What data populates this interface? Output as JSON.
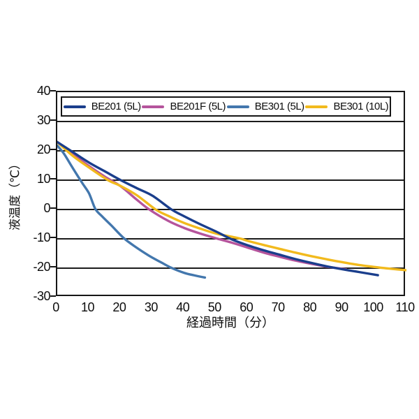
{
  "chart": {
    "y_title": "液温度（℃）",
    "x_title": "経過時間（分）",
    "frame_color": "#161616",
    "grid_color": "#1c1c1c"
  },
  "chart_data": {
    "type": "line",
    "title": "",
    "xlabel": "経過時間（分）",
    "ylabel": "液温度（℃）",
    "xlim": [
      0,
      110
    ],
    "ylim": [
      -30,
      40
    ],
    "x_ticks": [
      0,
      10,
      20,
      30,
      40,
      50,
      60,
      70,
      80,
      90,
      100,
      110
    ],
    "y_ticks": [
      40,
      30,
      20,
      10,
      0,
      -10,
      -20,
      -30
    ],
    "grid": "horizontal",
    "legend_position": "top-inside",
    "series": [
      {
        "name": "BE201F (5L)",
        "color": "#b5549c",
        "points": [
          [
            0,
            23
          ],
          [
            5,
            18.8
          ],
          [
            10,
            14.8
          ],
          [
            15,
            11.2
          ],
          [
            20,
            7.9
          ],
          [
            25,
            3.4
          ],
          [
            29,
            0
          ],
          [
            35,
            -3.9
          ],
          [
            40,
            -6.3
          ],
          [
            45,
            -8.2
          ],
          [
            50,
            -9.8
          ],
          [
            55,
            -11.3
          ],
          [
            60,
            -13
          ],
          [
            65,
            -14.7
          ],
          [
            70,
            -16.1
          ],
          [
            75,
            -17.4
          ],
          [
            80,
            -18.5
          ],
          [
            85,
            -19.5
          ],
          [
            91,
            -20.4
          ]
        ]
      },
      {
        "name": "BE301 (5L)",
        "color": "#4377ad",
        "points": [
          [
            0,
            21.8
          ],
          [
            2,
            19.2
          ],
          [
            4,
            15.7
          ],
          [
            6,
            12.2
          ],
          [
            8,
            8.8
          ],
          [
            10,
            5.5
          ],
          [
            12,
            0.2
          ],
          [
            14,
            -2.2
          ],
          [
            17,
            -5.4
          ],
          [
            21,
            -9.8
          ],
          [
            25,
            -13
          ],
          [
            29,
            -15.8
          ],
          [
            33,
            -18.2
          ],
          [
            36,
            -19.9
          ],
          [
            40,
            -21.6
          ],
          [
            43,
            -22.4
          ],
          [
            46.5,
            -23.2
          ]
        ]
      },
      {
        "name": "BE301 (10L)",
        "color": "#f2ba1d",
        "points": [
          [
            0,
            23
          ],
          [
            5,
            18.2
          ],
          [
            10,
            14.3
          ],
          [
            16,
            10
          ],
          [
            20,
            8
          ],
          [
            25,
            4.9
          ],
          [
            31,
            0
          ],
          [
            35,
            -2.2
          ],
          [
            40,
            -4.6
          ],
          [
            45,
            -6.5
          ],
          [
            50,
            -8.2
          ],
          [
            55,
            -9.3
          ],
          [
            58,
            -10
          ],
          [
            60,
            -10.7
          ],
          [
            65,
            -12.1
          ],
          [
            70,
            -13.4
          ],
          [
            75,
            -14.7
          ],
          [
            80,
            -15.9
          ],
          [
            85,
            -17
          ],
          [
            90,
            -18
          ],
          [
            95,
            -18.9
          ],
          [
            100,
            -19.6
          ],
          [
            105,
            -20.2
          ],
          [
            110,
            -20.7
          ]
        ]
      },
      {
        "name": "BE201 (5L)",
        "color": "#1a3e8c",
        "points": [
          [
            0,
            23
          ],
          [
            5,
            19.5
          ],
          [
            10,
            16
          ],
          [
            15,
            13
          ],
          [
            20,
            10
          ],
          [
            25,
            7.3
          ],
          [
            30,
            4.7
          ],
          [
            36,
            0
          ],
          [
            40,
            -2.3
          ],
          [
            45,
            -5
          ],
          [
            50,
            -7.5
          ],
          [
            55,
            -10.2
          ],
          [
            60,
            -12.2
          ],
          [
            65,
            -13.9
          ],
          [
            70,
            -15.4
          ],
          [
            75,
            -16.9
          ],
          [
            80,
            -18.2
          ],
          [
            85,
            -19.4
          ],
          [
            90,
            -20.4
          ],
          [
            95,
            -21.3
          ],
          [
            101,
            -22.4
          ]
        ]
      }
    ],
    "legend_order": [
      "BE201 (5L)",
      "BE201F (5L)",
      "BE301 (5L)",
      "BE301 (10L)"
    ]
  }
}
